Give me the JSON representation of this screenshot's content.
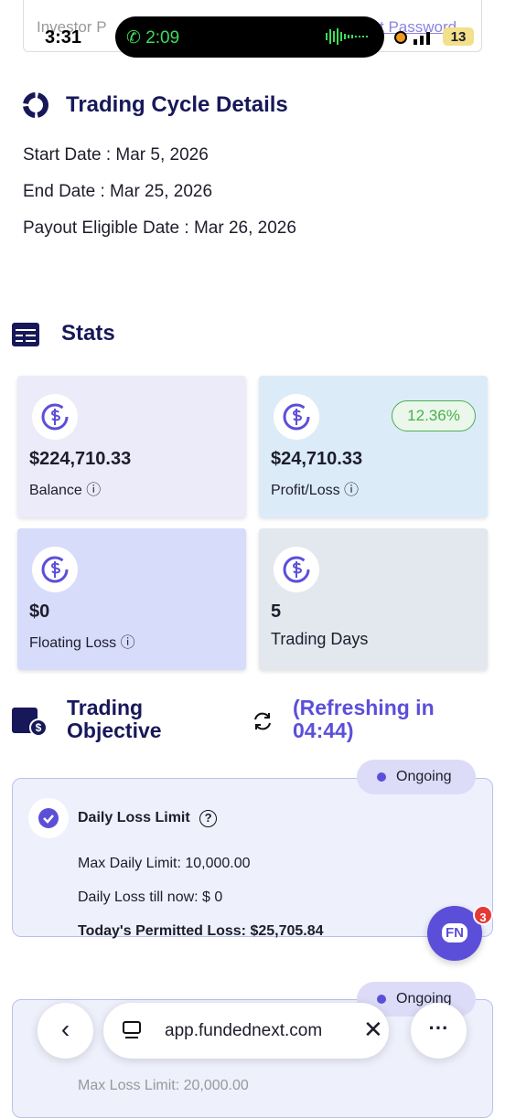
{
  "status_bar": {
    "time": "3:31",
    "call_time": "2:09",
    "battery": "13"
  },
  "top_card": {
    "left_fragment": "Investor P",
    "right_fragment": "t Password"
  },
  "cycle": {
    "title": "Trading Cycle Details",
    "lines": [
      "Start Date : Mar 5, 2026",
      "End Date : Mar 25, 2026",
      "Payout Eligible Date : Mar 26, 2026"
    ]
  },
  "stats": {
    "title": "Stats",
    "cards": [
      {
        "value": "$224,710.33",
        "label": "Balance"
      },
      {
        "value": "$24,710.33",
        "label": "Profit/Loss",
        "badge": "12.36%"
      },
      {
        "value": "$0",
        "label": "Floating Loss"
      },
      {
        "value": "5",
        "label": "Trading Days"
      }
    ]
  },
  "objective": {
    "title": "Trading Objective",
    "refresh": "(Refreshing in 04:44)",
    "cards": [
      {
        "status": "Ongoing",
        "heading": "Daily Loss Limit",
        "lines": [
          "Max Daily Limit: 10,000.00",
          "Daily Loss till now: $ 0",
          "Today's Permitted Loss: $25,705.84"
        ]
      },
      {
        "status": "Ongoing",
        "lines": [
          "Max Loss Limit: 20,000.00"
        ]
      }
    ]
  },
  "chat": {
    "icon": "FN",
    "badge": "3"
  },
  "browser": {
    "url": "app.fundednext.com"
  }
}
